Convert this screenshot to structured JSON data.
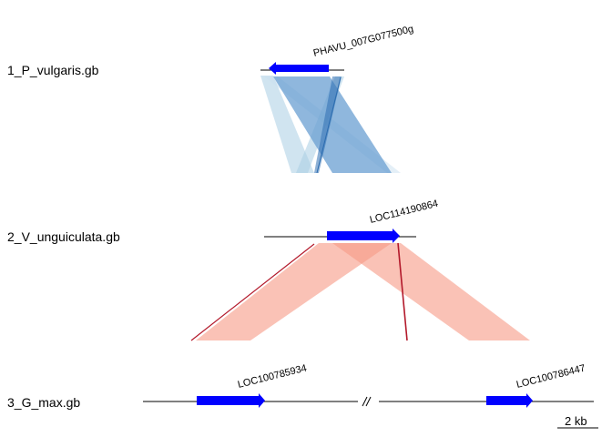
{
  "tracks": [
    {
      "label": "1_P_vulgaris.gb"
    },
    {
      "label": "2_V_unguiculata.gb"
    },
    {
      "label": "3_G_max.gb"
    }
  ],
  "genes": [
    {
      "label": "PHAVU_007G077500g",
      "track": "1_P_vulgaris.gb",
      "strand": "-"
    },
    {
      "label": "LOC114190864",
      "track": "2_V_unguiculata.gb",
      "strand": "+"
    },
    {
      "label": "LOC100785934",
      "track": "3_G_max.gb",
      "strand": "+"
    },
    {
      "label": "LOC100786447",
      "track": "3_G_max.gb",
      "strand": "+"
    }
  ],
  "scale_bar": {
    "label": "2 kb"
  },
  "colors": {
    "gene": "#0000ff",
    "backbone": "#000000",
    "forward_link": "#f79a86",
    "forward_link_dark": "#b3192b",
    "inverted_link": "#2b6cb0",
    "inverted_link_light": "#a9cde4"
  }
}
